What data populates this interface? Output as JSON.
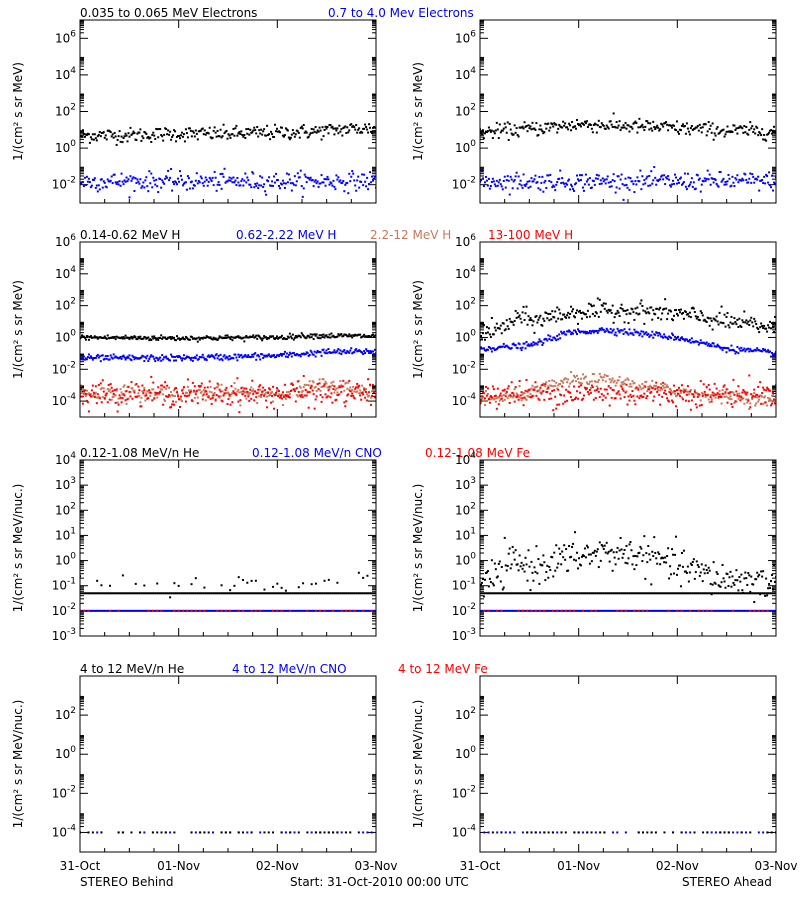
{
  "colors": {
    "black": "#000000",
    "blue": "#0000ff",
    "tan": "#c8785a",
    "red": "#ff0000"
  },
  "footer": {
    "left": "STEREO Behind",
    "center": "Start: 31-Oct-2010 00:00 UTC",
    "right": "STEREO Ahead"
  },
  "time_axis": {
    "ticks": [
      0,
      1,
      2,
      3
    ],
    "labels": [
      "31-Oct",
      "01-Nov",
      "02-Nov",
      "03-Nov"
    ],
    "unit": "days after start"
  },
  "chart_data": [
    {
      "id": "electrons",
      "type": "scatter",
      "legend": [
        {
          "text": "0.035 to 0.065 MeV Electrons",
          "color": "#000000"
        },
        {
          "text": "0.7 to 4.0 Mev Electrons",
          "color": "#0000ff"
        }
      ],
      "ylabel": "1/(cm² s sr MeV)",
      "ylog": true,
      "ylim_exp": [
        -3,
        7
      ],
      "ytick_exps": [
        -2,
        0,
        2,
        4,
        6
      ],
      "left": {
        "series": [
          {
            "name": "0.035 to 0.065 MeV Electrons",
            "color": "#000000",
            "style": "line",
            "x": [
              0,
              0.5,
              1,
              1.5,
              2,
              2.4,
              2.7,
              3
            ],
            "y": [
              5,
              5,
              6,
              6,
              7,
              8,
              11,
              12
            ],
            "spread": 0.2
          },
          {
            "name": "0.7 to 4.0 Mev Electrons",
            "color": "#0000ff",
            "style": "line",
            "x": [
              0,
              1,
              2,
              3
            ],
            "y": [
              0.015,
              0.015,
              0.015,
              0.016
            ],
            "spread": 0.25
          }
        ]
      },
      "right": {
        "series": [
          {
            "name": "0.035 to 0.065 MeV Electrons",
            "color": "#000000",
            "style": "line",
            "x": [
              0,
              0.4,
              0.8,
              1.0,
              1.4,
              2.0,
              2.5,
              3
            ],
            "y": [
              7,
              10,
              15,
              20,
              17,
              12,
              9,
              8
            ],
            "spread": 0.2
          },
          {
            "name": "0.7 to 4.0 Mev Electrons",
            "color": "#0000ff",
            "style": "line",
            "x": [
              0,
              1,
              2,
              3
            ],
            "y": [
              0.015,
              0.015,
              0.015,
              0.016
            ],
            "spread": 0.25
          }
        ]
      }
    },
    {
      "id": "protons",
      "type": "scatter",
      "legend": [
        {
          "text": "0.14-0.62 MeV H",
          "color": "#000000"
        },
        {
          "text": "0.62-2.22 MeV H",
          "color": "#0000ff"
        },
        {
          "text": "2.2-12 MeV H",
          "color": "#c8785a"
        },
        {
          "text": "13-100 MeV H",
          "color": "#ff0000"
        }
      ],
      "ylabel": "1/(cm² s sr MeV)",
      "ylog": true,
      "ylim_exp": [
        -5,
        6
      ],
      "ytick_exps": [
        -4,
        -2,
        0,
        2,
        4,
        6
      ],
      "left": {
        "series": [
          {
            "name": "0.14-0.62 MeV H",
            "color": "#000000",
            "style": "line",
            "x": [
              0,
              1,
              2,
              2.3,
              3
            ],
            "y": [
              1,
              0.9,
              1.0,
              1.3,
              1.2
            ],
            "spread": 0.08
          },
          {
            "name": "0.62-2.22 MeV H",
            "color": "#0000ff",
            "style": "line",
            "x": [
              0,
              1,
              2,
              2.5,
              3
            ],
            "y": [
              0.05,
              0.05,
              0.07,
              0.12,
              0.13
            ],
            "spread": 0.1
          },
          {
            "name": "2.2-12 MeV H",
            "color": "#c8785a",
            "style": "dots",
            "x": [
              0,
              1,
              2,
              2.5,
              2.8,
              3
            ],
            "y": [
              0.0003,
              0.0003,
              0.0003,
              0.001,
              0.0005,
              0.0004
            ],
            "spread": 0.25
          },
          {
            "name": "13-100 MeV H",
            "color": "#ff0000",
            "style": "dots",
            "x": [
              0,
              3
            ],
            "y": [
              0.0003,
              0.0003
            ],
            "spread": 0.4
          }
        ]
      },
      "right": {
        "series": [
          {
            "name": "0.14-0.62 MeV H",
            "color": "#000000",
            "style": "line",
            "x": [
              0,
              0.2,
              0.4,
              0.55,
              0.7,
              1.0,
              1.5,
              2.0,
              2.5,
              3
            ],
            "y": [
              2,
              3,
              20,
              10,
              20,
              40,
              50,
              30,
              10,
              4
            ],
            "spread": 0.3
          },
          {
            "name": "0.62-2.22 MeV H",
            "color": "#0000ff",
            "style": "line",
            "x": [
              0,
              0.5,
              0.9,
              1.3,
              2.0,
              2.5,
              3
            ],
            "y": [
              0.2,
              0.3,
              2,
              3,
              1,
              0.2,
              0.1
            ],
            "spread": 0.1
          },
          {
            "name": "2.2-12 MeV H",
            "color": "#c8785a",
            "style": "dots",
            "x": [
              0,
              0.5,
              0.9,
              1.3,
              1.9,
              2.5,
              3
            ],
            "y": [
              0.0001,
              0.0003,
              0.002,
              0.002,
              0.0005,
              0.0002,
              0.0001
            ],
            "spread": 0.2
          },
          {
            "name": "13-100 MeV H",
            "color": "#ff0000",
            "style": "dots",
            "x": [
              0,
              3
            ],
            "y": [
              0.0003,
              0.0003
            ],
            "spread": 0.4
          }
        ]
      }
    },
    {
      "id": "ions-low",
      "type": "scatter",
      "legend": [
        {
          "text": "0.12-1.08 MeV/n He",
          "color": "#000000"
        },
        {
          "text": "0.12-1.08 MeV/n CNO",
          "color": "#0000ff"
        },
        {
          "text": "0.12-1.08 MeV Fe",
          "color": "#ff0000"
        }
      ],
      "ylabel": "1/(cm² s sr MeV/nuc.)",
      "ylog": true,
      "ylim_exp": [
        -3,
        4
      ],
      "ytick_exps": [
        -3,
        -2,
        -1,
        0,
        1,
        2,
        3,
        4
      ],
      "left": {
        "series": [
          {
            "name": "0.12-1.08 MeV/n He (background)",
            "color": "#000000",
            "style": "dash",
            "x": [
              0,
              3
            ],
            "y": [
              0.05,
              0.05
            ],
            "spread": 0
          },
          {
            "name": "0.12-1.08 MeV/n He",
            "color": "#000000",
            "style": "sparse",
            "x": [
              0,
              3
            ],
            "y": [
              0.12,
              0.12
            ],
            "spread": 0.2
          },
          {
            "name": "0.12-1.08 MeV/n CNO",
            "color": "#0000ff",
            "style": "dash",
            "x": [
              0,
              3
            ],
            "y": [
              0.01,
              0.01
            ],
            "spread": 0
          },
          {
            "name": "0.12-1.08 MeV Fe",
            "color": "#ff0000",
            "style": "sparse",
            "x": [
              0,
              3
            ],
            "y": [
              0.01,
              0.01
            ],
            "spread": 0
          }
        ]
      },
      "right": {
        "series": [
          {
            "name": "0.12-1.08 MeV/n He (background)",
            "color": "#000000",
            "style": "dash",
            "x": [
              0,
              3
            ],
            "y": [
              0.05,
              0.05
            ],
            "spread": 0
          },
          {
            "name": "0.12-1.08 MeV/n He",
            "color": "#000000",
            "style": "dots",
            "x": [
              0,
              0.2,
              0.35,
              0.5,
              0.8,
              1.0,
              1.3,
              1.6,
              2.0,
              2.4,
              3
            ],
            "y": [
              0.1,
              0.3,
              1,
              0.5,
              1,
              1.5,
              2,
              1.8,
              0.6,
              0.2,
              0.12
            ],
            "spread": 0.35
          },
          {
            "name": "0.12-1.08 MeV/n CNO",
            "color": "#0000ff",
            "style": "dash",
            "x": [
              0,
              3
            ],
            "y": [
              0.01,
              0.01
            ],
            "spread": 0
          },
          {
            "name": "0.12-1.08 MeV Fe",
            "color": "#ff0000",
            "style": "sparse",
            "x": [
              0,
              3
            ],
            "y": [
              0.01,
              0.01
            ],
            "spread": 0
          }
        ]
      }
    },
    {
      "id": "ions-high",
      "type": "scatter",
      "legend": [
        {
          "text": "4 to 12 MeV/n He",
          "color": "#000000"
        },
        {
          "text": "4 to 12 MeV/n CNO",
          "color": "#0000ff"
        },
        {
          "text": "4 to 12 MeV Fe",
          "color": "#ff0000"
        }
      ],
      "ylabel": "1/(cm² s sr MeV/nuc.)",
      "ylog": true,
      "ylim_exp": [
        -5,
        4
      ],
      "ytick_exps": [
        -4,
        -2,
        0,
        2
      ],
      "left": {
        "series": [
          {
            "name": "4 to 12 MeV/n CNO",
            "color": "#0000ff",
            "style": "sparse",
            "x": [
              0,
              3
            ],
            "y": [
              0.0001,
              0.0001
            ],
            "spread": 0
          },
          {
            "name": "4 to 12 MeV/n He",
            "color": "#000000",
            "style": "sparse",
            "x": [
              0,
              3
            ],
            "y": [
              0.0001,
              0.0001
            ],
            "spread": 0
          }
        ]
      },
      "right": {
        "series": [
          {
            "name": "4 to 12 MeV/n CNO",
            "color": "#0000ff",
            "style": "sparse",
            "x": [
              0,
              3
            ],
            "y": [
              0.0001,
              0.0001
            ],
            "spread": 0
          },
          {
            "name": "4 to 12 MeV/n He",
            "color": "#000000",
            "style": "sparse",
            "x": [
              0,
              3
            ],
            "y": [
              0.0001,
              0.0001
            ],
            "spread": 0
          }
        ]
      }
    }
  ]
}
